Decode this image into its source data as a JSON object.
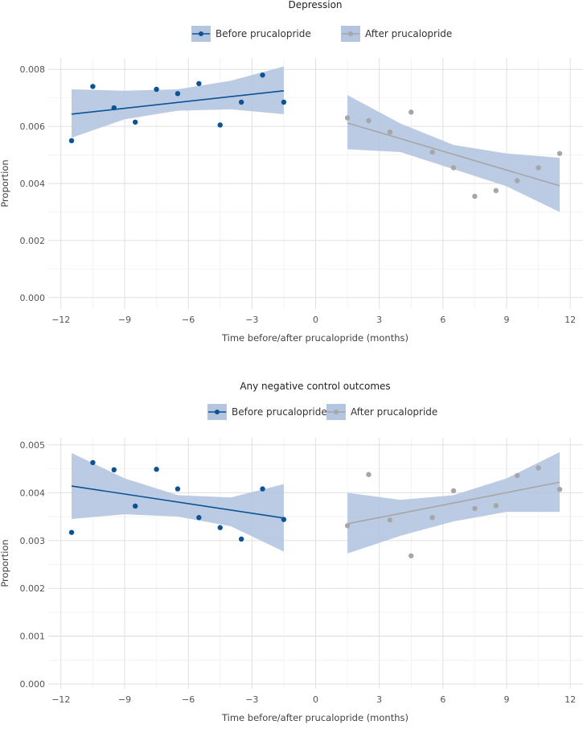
{
  "chart_data": [
    {
      "type": "scatter",
      "title": "Depression",
      "xlabel": "Time before/after prucalopride (months)",
      "ylabel": "Proportion",
      "xlim": [
        -12.6,
        12.6
      ],
      "ylim": [
        -0.0004,
        0.0084
      ],
      "xticks": [
        -12,
        -9,
        -6,
        -3,
        0,
        3,
        6,
        9,
        12
      ],
      "xtick_labels": [
        "−12",
        "−9",
        "−6",
        "−3",
        "0",
        "3",
        "6",
        "9",
        "12"
      ],
      "yticks": [
        0,
        0.002,
        0.004,
        0.006,
        0.008
      ],
      "ytick_labels": [
        "0.000",
        "0.002",
        "0.004",
        "0.006",
        "0.008"
      ],
      "legend_position": "top",
      "series": [
        {
          "name": "Before prucalopride",
          "color": "#0b5394",
          "x": [
            -11.5,
            -10.5,
            -9.5,
            -8.5,
            -7.5,
            -6.5,
            -5.5,
            -4.5,
            -3.5,
            -2.5,
            -1.5
          ],
          "y": [
            0.0055,
            0.0074,
            0.00665,
            0.00615,
            0.0073,
            0.00715,
            0.0075,
            0.00605,
            0.00685,
            0.0078,
            0.00685
          ],
          "fit": {
            "x": [
              -11.5,
              -1.5
            ],
            "y": [
              0.00643,
              0.00725
            ]
          },
          "ci_x": [
            -11.5,
            -9,
            -6.5,
            -4,
            -1.5
          ],
          "ci_lower": [
            0.0056,
            0.00625,
            0.00655,
            0.0066,
            0.00643
          ],
          "ci_upper": [
            0.0073,
            0.00725,
            0.0073,
            0.0076,
            0.0081
          ]
        },
        {
          "name": "After prucalopride",
          "color": "#a6a6a6",
          "x": [
            1.5,
            2.5,
            3.5,
            4.5,
            5.5,
            6.5,
            7.5,
            8.5,
            9.5,
            10.5,
            11.5
          ],
          "y": [
            0.0063,
            0.0062,
            0.0058,
            0.0065,
            0.0051,
            0.00455,
            0.00355,
            0.00375,
            0.0041,
            0.00455,
            0.00505
          ],
          "fit": {
            "x": [
              1.5,
              11.5
            ],
            "y": [
              0.00612,
              0.00392
            ]
          },
          "ci_x": [
            1.5,
            4,
            6.5,
            9,
            11.5
          ],
          "ci_lower": [
            0.0052,
            0.0051,
            0.0045,
            0.0039,
            0.003
          ],
          "ci_upper": [
            0.0071,
            0.0061,
            0.00535,
            0.00505,
            0.0049
          ]
        }
      ]
    },
    {
      "type": "scatter",
      "title": "Any negative control outcomes",
      "xlabel": "Time before/after prucalopride (months)",
      "ylabel": "Proportion",
      "xlim": [
        -12.6,
        12.6
      ],
      "ylim": [
        -0.0001,
        0.00515
      ],
      "xticks": [
        -12,
        -9,
        -6,
        -3,
        0,
        3,
        6,
        9,
        12
      ],
      "xtick_labels": [
        "−12",
        "−9",
        "−6",
        "−3",
        "0",
        "3",
        "6",
        "9",
        "12"
      ],
      "yticks": [
        0,
        0.001,
        0.002,
        0.003,
        0.004,
        0.005
      ],
      "ytick_labels": [
        "0.000",
        "0.001",
        "0.002",
        "0.003",
        "0.004",
        "0.005"
      ],
      "legend_position": "top",
      "series": [
        {
          "name": "Before prucalopride",
          "color": "#0b5394",
          "x": [
            -11.5,
            -10.5,
            -9.5,
            -8.5,
            -7.5,
            -6.5,
            -5.5,
            -4.5,
            -3.5,
            -2.5,
            -1.5
          ],
          "y": [
            0.00317,
            0.00463,
            0.00448,
            0.00372,
            0.00449,
            0.00408,
            0.00348,
            0.00327,
            0.00303,
            0.00408,
            0.00344
          ],
          "fit": {
            "x": [
              -11.5,
              -1.5
            ],
            "y": [
              0.00414,
              0.00347
            ]
          },
          "ci_x": [
            -11.5,
            -9,
            -6.5,
            -4,
            -1.5
          ],
          "ci_lower": [
            0.00345,
            0.00355,
            0.0035,
            0.0033,
            0.00277
          ],
          "ci_upper": [
            0.00483,
            0.0043,
            0.00395,
            0.0039,
            0.00418
          ]
        },
        {
          "name": "After prucalopride",
          "color": "#a6a6a6",
          "x": [
            1.5,
            2.5,
            3.5,
            4.5,
            5.5,
            6.5,
            7.5,
            8.5,
            9.5,
            10.5,
            11.5
          ],
          "y": [
            0.00331,
            0.00438,
            0.00343,
            0.00268,
            0.00348,
            0.00404,
            0.00367,
            0.00373,
            0.00436,
            0.00452,
            0.00407
          ],
          "fit": {
            "x": [
              1.5,
              11.5
            ],
            "y": [
              0.00335,
              0.00422
            ]
          },
          "ci_x": [
            1.5,
            4,
            6.5,
            9,
            11.5
          ],
          "ci_lower": [
            0.00273,
            0.0031,
            0.0034,
            0.0036,
            0.0036
          ],
          "ci_upper": [
            0.004,
            0.00385,
            0.00395,
            0.0043,
            0.00485
          ]
        }
      ]
    }
  ]
}
